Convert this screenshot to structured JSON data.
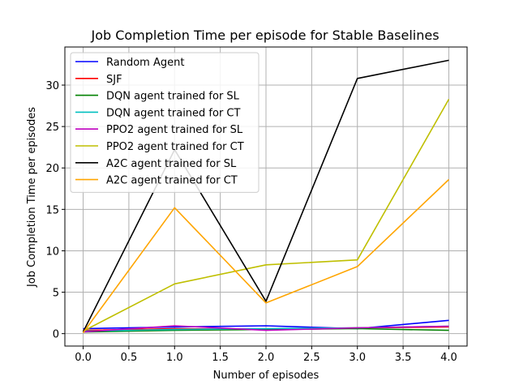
{
  "chart_data": {
    "type": "line",
    "title": "Job Completion Time per episode for Stable Baselines",
    "xlabel": "Number of episodes",
    "ylabel": "Job Completion Time per episodes",
    "xlim": [
      -0.2,
      4.2
    ],
    "ylim": [
      -1.5,
      34.6
    ],
    "xticks": [
      0.0,
      0.5,
      1.0,
      1.5,
      2.0,
      2.5,
      3.0,
      3.5,
      4.0
    ],
    "xtick_labels": [
      "0.0",
      "0.5",
      "1.0",
      "1.5",
      "2.0",
      "2.5",
      "3.0",
      "3.5",
      "4.0"
    ],
    "yticks": [
      0,
      5,
      10,
      15,
      20,
      25,
      30
    ],
    "ytick_labels": [
      "0",
      "5",
      "10",
      "15",
      "20",
      "25",
      "30"
    ],
    "grid": true,
    "legend_position": "top-left",
    "x": [
      0,
      1,
      2,
      3,
      4
    ],
    "series": [
      {
        "name": "Random Agent",
        "color": "#0000ff",
        "values": [
          0.6,
          0.8,
          0.95,
          0.6,
          1.6
        ]
      },
      {
        "name": "SJF",
        "color": "#ff0000",
        "values": [
          0.4,
          0.6,
          0.5,
          0.7,
          0.8
        ]
      },
      {
        "name": "DQN agent trained for SL",
        "color": "#008000",
        "values": [
          0.2,
          0.4,
          0.5,
          0.6,
          0.4
        ]
      },
      {
        "name": "DQN agent trained for CT",
        "color": "#00bfbf",
        "values": [
          0.3,
          0.5,
          0.6,
          0.7,
          0.9
        ]
      },
      {
        "name": "PPO2 agent trained for SL",
        "color": "#bf00bf",
        "values": [
          0.2,
          0.95,
          0.4,
          0.7,
          0.9
        ]
      },
      {
        "name": "PPO2 agent trained for CT",
        "color": "#bfbf00",
        "values": [
          0.3,
          6.0,
          8.3,
          8.9,
          28.3
        ]
      },
      {
        "name": "A2C agent trained for SL",
        "color": "#000000",
        "values": [
          0.2,
          22.2,
          3.9,
          30.8,
          33.0
        ]
      },
      {
        "name": "A2C agent trained for CT",
        "color": "#ffa500",
        "values": [
          0.1,
          15.2,
          3.7,
          8.1,
          18.6
        ]
      }
    ]
  }
}
